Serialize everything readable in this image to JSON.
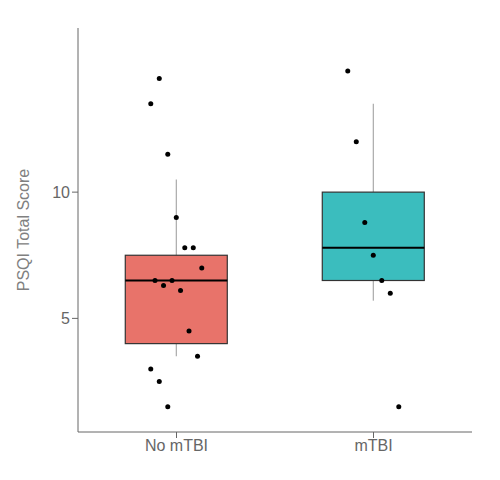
{
  "chart_data": {
    "type": "box",
    "ylabel": "PSQI Total Score",
    "categories": [
      "No mTBI",
      "mTBI"
    ],
    "colors": [
      "#E8736A",
      "#3BBDBE"
    ],
    "q1": [
      4.0,
      6.5
    ],
    "median": [
      6.5,
      7.8
    ],
    "q3": [
      7.5,
      10.0
    ],
    "whisker_low": [
      3.5,
      5.7
    ],
    "whisker_high": [
      10.5,
      13.5
    ],
    "points": [
      [
        13.5,
        14.5,
        11.5,
        9.0,
        7.8,
        7.8,
        7.0,
        6.5,
        6.3,
        6.5,
        6.1,
        4.5,
        3.5,
        3.0,
        2.5,
        1.5
      ],
      [
        14.8,
        12.0,
        8.8,
        7.5,
        6.5,
        6.0,
        1.5
      ]
    ],
    "ylim": [
      0.5,
      16.5
    ],
    "yticks": [
      5,
      10
    ]
  }
}
